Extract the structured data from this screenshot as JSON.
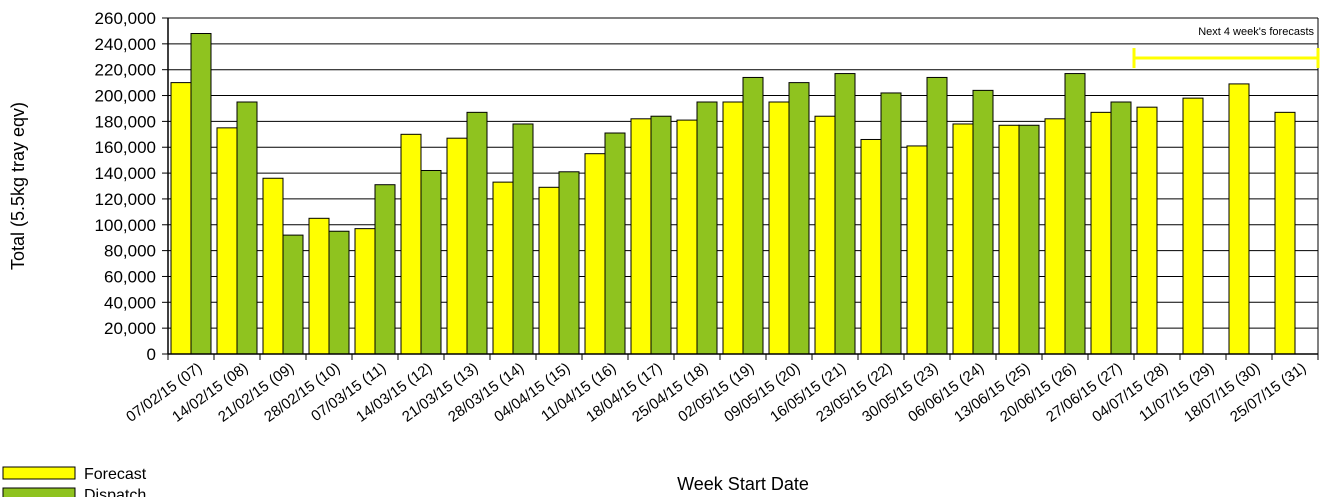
{
  "chart_data": {
    "type": "bar",
    "ylabel": "Total (5.5kg tray eqv)",
    "xlabel": "Week Start Date",
    "ylim": [
      0,
      260000
    ],
    "ytick_step": 20000,
    "y_ticks": [
      "0",
      "20,000",
      "40,000",
      "60,000",
      "80,000",
      "100,000",
      "120,000",
      "140,000",
      "160,000",
      "180,000",
      "200,000",
      "220,000",
      "240,000",
      "260,000"
    ],
    "categories": [
      "07/02/15 (07)",
      "14/02/15 (08)",
      "21/02/15 (09)",
      "28/02/15 (10)",
      "07/03/15 (11)",
      "14/03/15 (12)",
      "21/03/15 (13)",
      "28/03/15 (14)",
      "04/04/15 (15)",
      "11/04/15 (16)",
      "18/04/15 (17)",
      "25/04/15 (18)",
      "02/05/15 (19)",
      "09/05/15 (20)",
      "16/05/15 (21)",
      "23/05/15 (22)",
      "30/05/15 (23)",
      "06/06/15 (24)",
      "13/06/15 (25)",
      "20/06/15 (26)",
      "27/06/15 (27)",
      "04/07/15 (28)",
      "11/07/15 (29)",
      "18/07/15 (30)",
      "25/07/15 (31)"
    ],
    "series": [
      {
        "name": "Forecast",
        "color": "#ffff00",
        "values": [
          210000,
          175000,
          136000,
          105000,
          97000,
          170000,
          167000,
          133000,
          129000,
          155000,
          182000,
          181000,
          195000,
          195000,
          184000,
          166000,
          161000,
          178000,
          177000,
          182000,
          187000,
          191000,
          198000,
          209000,
          187000
        ]
      },
      {
        "name": "Dispatch",
        "color": "#8fc31f",
        "values": [
          248000,
          195000,
          92000,
          95000,
          131000,
          142000,
          187000,
          178000,
          141000,
          171000,
          184000,
          195000,
          214000,
          210000,
          217000,
          202000,
          214000,
          204000,
          177000,
          217000,
          195000,
          null,
          null,
          null,
          null
        ]
      }
    ],
    "annotation": {
      "text": "Next 4 week's forecasts",
      "from_category": "04/07/15 (28)",
      "to_category": "25/07/15 (31)",
      "color": "#ffff00"
    },
    "grid": true,
    "legend": {
      "placement": "bottom-left",
      "entries": [
        "Forecast",
        "Dispatch"
      ]
    }
  }
}
